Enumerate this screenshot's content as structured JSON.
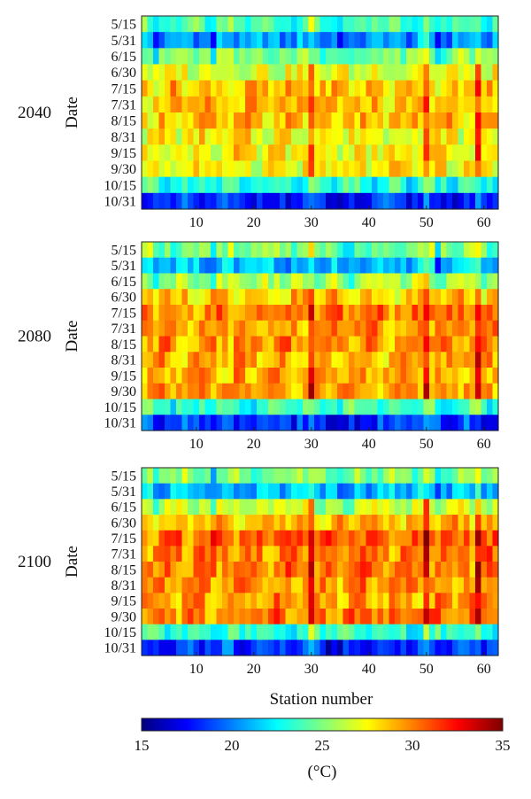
{
  "chart_data": [
    {
      "type": "heatmap",
      "panel_label": "2040",
      "ylabel": "Date",
      "xlabel": "",
      "row_labels": [
        "5/15",
        "5/31",
        "6/15",
        "6/30",
        "7/15",
        "7/31",
        "8/15",
        "8/31",
        "9/15",
        "9/30",
        "10/15",
        "10/31"
      ],
      "x_ticks": [
        10,
        20,
        30,
        40,
        50,
        60
      ],
      "x_range": [
        1,
        62
      ],
      "row_profile": [
        24,
        20.5,
        25,
        27,
        28.5,
        28.5,
        28.5,
        27.5,
        27.5,
        27.5,
        23,
        18
      ],
      "station_offset_per_unit_warmth": [
        0,
        0
      ],
      "hot_stations": [
        30,
        50,
        59
      ],
      "cool_stations": [
        3,
        13,
        35,
        36,
        37,
        52
      ]
    },
    {
      "type": "heatmap",
      "panel_label": "2080",
      "ylabel": "Date",
      "xlabel": "",
      "row_labels": [
        "5/15",
        "5/31",
        "6/15",
        "6/30",
        "7/15",
        "7/31",
        "8/15",
        "8/31",
        "9/15",
        "9/30",
        "10/15",
        "10/31"
      ],
      "x_ticks": [
        10,
        20,
        30,
        40,
        50,
        60
      ],
      "x_range": [
        1,
        62
      ],
      "row_profile": [
        25,
        21.5,
        26,
        28.5,
        30,
        29.5,
        29.5,
        29,
        29,
        29.5,
        23.5,
        18.5
      ],
      "hot_stations": [
        30,
        50,
        59
      ],
      "cool_stations": [
        3,
        13,
        35,
        36,
        37,
        52
      ]
    },
    {
      "type": "heatmap",
      "panel_label": "2100",
      "ylabel": "Date",
      "xlabel": "Station number",
      "row_labels": [
        "5/15",
        "5/31",
        "6/15",
        "6/30",
        "7/15",
        "7/31",
        "8/15",
        "8/31",
        "9/15",
        "9/30",
        "10/15",
        "10/31"
      ],
      "x_ticks": [
        10,
        20,
        30,
        40,
        50,
        60
      ],
      "x_range": [
        1,
        62
      ],
      "row_profile": [
        25,
        21.5,
        26.5,
        29,
        30.5,
        30,
        30,
        29.5,
        29.5,
        30,
        23.5,
        18.5
      ],
      "hot_stations": [
        30,
        50,
        59
      ],
      "cool_stations": [
        3,
        13,
        35,
        36,
        37,
        52
      ]
    }
  ],
  "colorbar": {
    "min": 15,
    "max": 35,
    "ticks": [
      "15",
      "20",
      "25",
      "30",
      "35"
    ],
    "unit": "(°C)",
    "colormap": "jet"
  }
}
